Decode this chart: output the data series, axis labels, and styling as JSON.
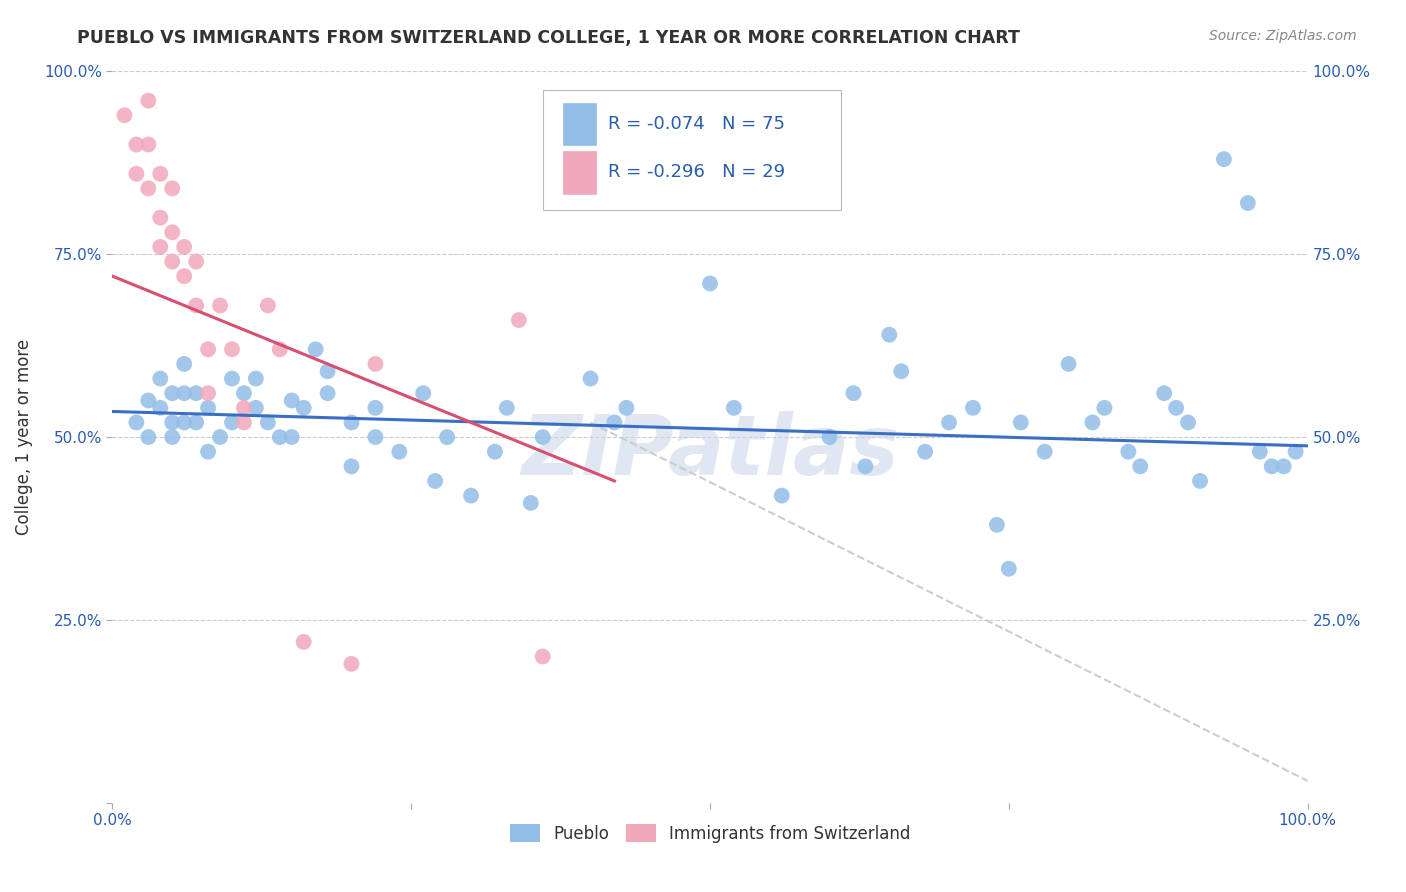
{
  "title": "PUEBLO VS IMMIGRANTS FROM SWITZERLAND COLLEGE, 1 YEAR OR MORE CORRELATION CHART",
  "source_text": "Source: ZipAtlas.com",
  "ylabel": "College, 1 year or more",
  "xlim": [
    0.0,
    1.0
  ],
  "ylim": [
    0.0,
    1.0
  ],
  "ytick_values": [
    0.0,
    0.25,
    0.5,
    0.75,
    1.0
  ],
  "legend_label1": "Pueblo",
  "legend_label2": "Immigrants from Switzerland",
  "R1": -0.074,
  "N1": 75,
  "R2": -0.296,
  "N2": 29,
  "blue_color": "#92BEE8",
  "pink_color": "#F2A8BB",
  "line_blue": "#3A6FC4",
  "line_pink": "#D85070",
  "line_gray": "#C8C8C8",
  "title_color": "#333333",
  "source_color": "#888888",
  "legend_text_color": "#2A5DB0",
  "background_color": "#FFFFFF",
  "grid_color": "#CCCCCC",
  "blue_points": [
    [
      0.02,
      0.52
    ],
    [
      0.03,
      0.55
    ],
    [
      0.03,
      0.5
    ],
    [
      0.04,
      0.58
    ],
    [
      0.04,
      0.54
    ],
    [
      0.05,
      0.52
    ],
    [
      0.05,
      0.56
    ],
    [
      0.05,
      0.5
    ],
    [
      0.06,
      0.6
    ],
    [
      0.06,
      0.56
    ],
    [
      0.06,
      0.52
    ],
    [
      0.07,
      0.56
    ],
    [
      0.07,
      0.52
    ],
    [
      0.08,
      0.48
    ],
    [
      0.08,
      0.54
    ],
    [
      0.09,
      0.5
    ],
    [
      0.1,
      0.58
    ],
    [
      0.1,
      0.52
    ],
    [
      0.11,
      0.56
    ],
    [
      0.12,
      0.58
    ],
    [
      0.12,
      0.54
    ],
    [
      0.13,
      0.52
    ],
    [
      0.14,
      0.5
    ],
    [
      0.15,
      0.55
    ],
    [
      0.15,
      0.5
    ],
    [
      0.16,
      0.54
    ],
    [
      0.17,
      0.62
    ],
    [
      0.18,
      0.59
    ],
    [
      0.18,
      0.56
    ],
    [
      0.2,
      0.52
    ],
    [
      0.2,
      0.46
    ],
    [
      0.22,
      0.5
    ],
    [
      0.22,
      0.54
    ],
    [
      0.24,
      0.48
    ],
    [
      0.26,
      0.56
    ],
    [
      0.27,
      0.44
    ],
    [
      0.28,
      0.5
    ],
    [
      0.3,
      0.42
    ],
    [
      0.32,
      0.48
    ],
    [
      0.33,
      0.54
    ],
    [
      0.35,
      0.41
    ],
    [
      0.36,
      0.5
    ],
    [
      0.4,
      0.58
    ],
    [
      0.42,
      0.52
    ],
    [
      0.43,
      0.54
    ],
    [
      0.5,
      0.71
    ],
    [
      0.52,
      0.54
    ],
    [
      0.56,
      0.42
    ],
    [
      0.6,
      0.5
    ],
    [
      0.62,
      0.56
    ],
    [
      0.63,
      0.46
    ],
    [
      0.65,
      0.64
    ],
    [
      0.66,
      0.59
    ],
    [
      0.68,
      0.48
    ],
    [
      0.7,
      0.52
    ],
    [
      0.72,
      0.54
    ],
    [
      0.74,
      0.38
    ],
    [
      0.75,
      0.32
    ],
    [
      0.76,
      0.52
    ],
    [
      0.78,
      0.48
    ],
    [
      0.8,
      0.6
    ],
    [
      0.82,
      0.52
    ],
    [
      0.83,
      0.54
    ],
    [
      0.85,
      0.48
    ],
    [
      0.86,
      0.46
    ],
    [
      0.88,
      0.56
    ],
    [
      0.89,
      0.54
    ],
    [
      0.9,
      0.52
    ],
    [
      0.91,
      0.44
    ],
    [
      0.93,
      0.88
    ],
    [
      0.95,
      0.82
    ],
    [
      0.96,
      0.48
    ],
    [
      0.97,
      0.46
    ],
    [
      0.98,
      0.46
    ],
    [
      0.99,
      0.48
    ]
  ],
  "pink_points": [
    [
      0.01,
      0.94
    ],
    [
      0.02,
      0.9
    ],
    [
      0.02,
      0.86
    ],
    [
      0.03,
      0.96
    ],
    [
      0.03,
      0.9
    ],
    [
      0.03,
      0.84
    ],
    [
      0.04,
      0.86
    ],
    [
      0.04,
      0.8
    ],
    [
      0.04,
      0.76
    ],
    [
      0.05,
      0.84
    ],
    [
      0.05,
      0.78
    ],
    [
      0.05,
      0.74
    ],
    [
      0.06,
      0.72
    ],
    [
      0.06,
      0.76
    ],
    [
      0.07,
      0.68
    ],
    [
      0.07,
      0.74
    ],
    [
      0.08,
      0.62
    ],
    [
      0.08,
      0.56
    ],
    [
      0.09,
      0.68
    ],
    [
      0.1,
      0.62
    ],
    [
      0.11,
      0.54
    ],
    [
      0.11,
      0.52
    ],
    [
      0.13,
      0.68
    ],
    [
      0.14,
      0.62
    ],
    [
      0.16,
      0.22
    ],
    [
      0.2,
      0.19
    ],
    [
      0.22,
      0.6
    ],
    [
      0.34,
      0.66
    ],
    [
      0.36,
      0.2
    ]
  ],
  "watermark_text": "ZIPatlas",
  "watermark_color": "#C8D5E8",
  "watermark_alpha": 0.55,
  "blue_line_x": [
    0.0,
    1.0
  ],
  "blue_line_y": [
    0.535,
    0.488
  ],
  "pink_line_x": [
    0.0,
    0.42
  ],
  "pink_line_y": [
    0.72,
    0.44
  ],
  "gray_line_x": [
    0.4,
    1.0
  ],
  "gray_line_y": [
    0.52,
    0.03
  ]
}
